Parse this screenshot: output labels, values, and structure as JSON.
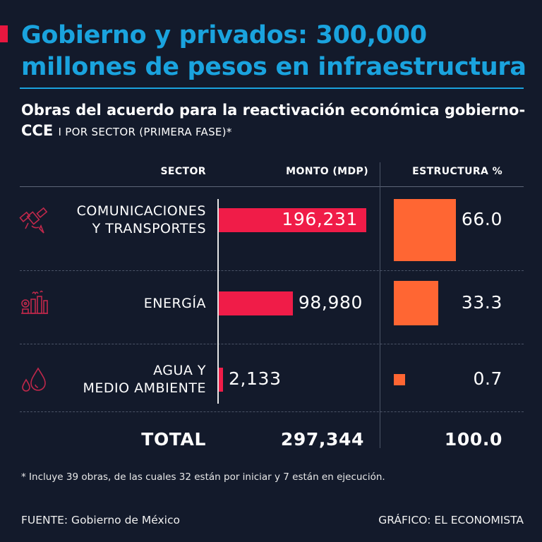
{
  "header": {
    "title": "Gobierno y privados: 300,000 millones de pesos en infraestructura",
    "subtitle": "Obras del acuerdo para la reactivación económica gobierno-CCE",
    "subtitle_tag": "I POR SECTOR (PRIMERA FASE)*"
  },
  "columns": {
    "sector": "SECTOR",
    "monto": "MONTO  (MDP)",
    "estructura": "ESTRUCTURA  %"
  },
  "chart_data": {
    "type": "bar",
    "title": "Gobierno y privados: 300,000 millones de pesos en infraestructura",
    "categories": [
      "COMUNICACIONES Y TRANSPORTES",
      "ENERGÍA",
      "AGUA Y MEDIO AMBIENTE"
    ],
    "series": [
      {
        "name": "MONTO  (MDP)",
        "values": [
          196231,
          98980,
          2133
        ],
        "labels": [
          "196,231",
          "98,980",
          "2,133"
        ]
      },
      {
        "name": "ESTRUCTURA  %",
        "values": [
          66.0,
          33.3,
          0.7
        ],
        "labels": [
          "66.0",
          "33.3",
          "0.7"
        ]
      }
    ],
    "sector_lines": [
      [
        "COMUNICACIONES",
        "Y TRANSPORTES"
      ],
      [
        "ENERGÍA"
      ],
      [
        "AGUA Y",
        "MEDIO AMBIENTE"
      ]
    ],
    "icons": [
      "satellite-icon",
      "energy-plant-icon",
      "water-drops-icon"
    ],
    "total": {
      "label": "TOTAL",
      "monto": "297,344",
      "estructura": "100.0"
    },
    "colors": {
      "bar": "#f01c48",
      "square": "#ff6633",
      "title": "#1aa3de",
      "background": "#131a2b",
      "icon": "#c0284b"
    }
  },
  "footer": {
    "note": "* Incluye 39 obras, de las cuales 32 están por iniciar y 7 están en ejecución.",
    "source": "FUENTE: Gobierno de México",
    "credit": "GRÁFICO: EL ECONOMISTA"
  }
}
